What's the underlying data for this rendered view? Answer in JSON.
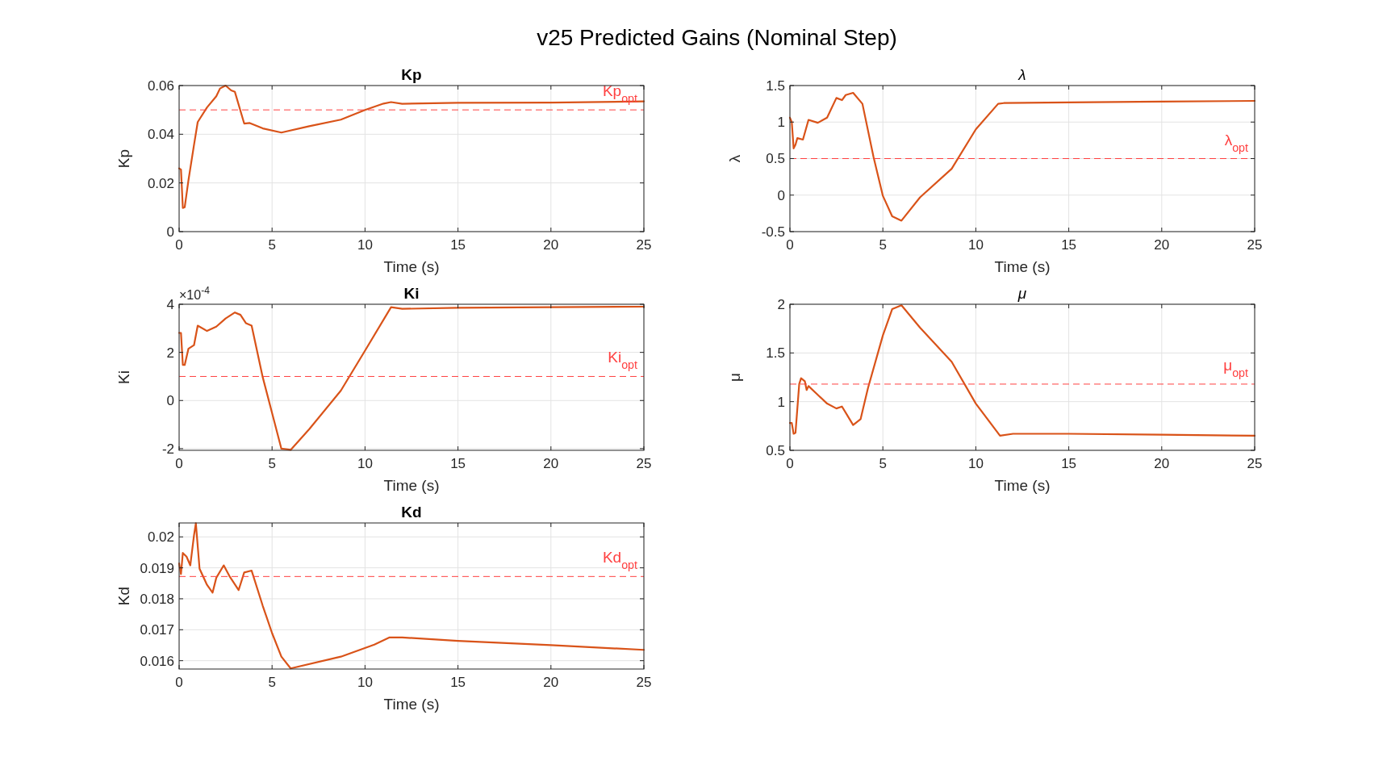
{
  "chart_data": [
    {
      "type": "line",
      "title": "Kp",
      "xlabel": "Time (s)",
      "ylabel": "Kp",
      "annotations": [
        "v25 Predicted Gains (Nominal Step)"
      ],
      "xlim": [
        0,
        25
      ],
      "xticks": [
        0,
        5,
        10,
        15,
        20,
        25
      ],
      "ylim": [
        0,
        0.06
      ],
      "yticks": [
        0,
        0.02,
        0.04,
        0.06
      ],
      "grid": true,
      "x": [
        0,
        0.1,
        0.2,
        0.3,
        0.5,
        0.8,
        1,
        1.5,
        2,
        2.2,
        2.5,
        2.8,
        3,
        3.5,
        3.8,
        4.5,
        5.5,
        7,
        8.7,
        10,
        11,
        11.4,
        12,
        15,
        20,
        25
      ],
      "series": [
        {
          "color": "#d95319",
          "values": [
            0.026,
            0.0255,
            0.0097,
            0.01,
            0.021,
            0.0356,
            0.045,
            0.051,
            0.0556,
            0.0588,
            0.06,
            0.058,
            0.0574,
            0.0444,
            0.0446,
            0.0424,
            0.0407,
            0.0433,
            0.046,
            0.05,
            0.0526,
            0.0532,
            0.0525,
            0.0529,
            0.053,
            0.0535
          ]
        }
      ],
      "ref_lines": [
        {
          "axis": "y",
          "value": 0.05,
          "label": "Kp$_{opt}$",
          "color": "#ff4040",
          "line_style": "dashed"
        }
      ]
    },
    {
      "type": "line",
      "title": "λ",
      "xlabel": "Time (s)",
      "ylabel": "λ",
      "xlim": [
        0,
        25
      ],
      "xticks": [
        0,
        5,
        10,
        15,
        20,
        25
      ],
      "ylim": [
        -0.5,
        1.5
      ],
      "yticks": [
        -0.5,
        0,
        0.5,
        1,
        1.5
      ],
      "grid": true,
      "x": [
        0,
        0.1,
        0.2,
        0.3,
        0.4,
        0.7,
        1,
        1.5,
        2,
        2.5,
        2.8,
        3,
        3.4,
        3.9,
        4.5,
        5,
        5.5,
        6,
        7,
        8.7,
        10,
        11.2,
        11.5,
        15,
        20,
        25
      ],
      "series": [
        {
          "color": "#d95319",
          "values": [
            1.06,
            1.0,
            0.64,
            0.69,
            0.78,
            0.76,
            1.03,
            0.99,
            1.06,
            1.33,
            1.3,
            1.37,
            1.4,
            1.25,
            0.52,
            -0.01,
            -0.29,
            -0.35,
            -0.03,
            0.36,
            0.9,
            1.25,
            1.26,
            1.27,
            1.28,
            1.29
          ]
        }
      ],
      "ref_lines": [
        {
          "axis": "y",
          "value": 0.5,
          "label": "λ$_{opt}$",
          "color": "#ff4040",
          "line_style": "dashed"
        }
      ]
    },
    {
      "type": "line",
      "title": "Ki",
      "xlabel": "Time (s)",
      "ylabel": "Ki",
      "annotations": [
        "×10$^{-4}$"
      ],
      "xlim": [
        0,
        25
      ],
      "xticks": [
        0,
        5,
        10,
        15,
        20,
        25
      ],
      "ylim": [
        -2.07,
        4
      ],
      "yticks": [
        -2,
        0,
        2,
        4
      ],
      "grid": true,
      "x": [
        0,
        0.1,
        0.2,
        0.3,
        0.5,
        0.8,
        1,
        1.5,
        2,
        2.5,
        3,
        3.3,
        3.6,
        3.9,
        4.5,
        5,
        5.5,
        6,
        7,
        8.7,
        10,
        11.4,
        12,
        15,
        20,
        25
      ],
      "series": [
        {
          "color": "#d95319",
          "values": [
            2.81,
            2.81,
            1.48,
            1.48,
            2.15,
            2.3,
            3.11,
            2.89,
            3.07,
            3.41,
            3.66,
            3.56,
            3.21,
            3.11,
            0.96,
            -0.52,
            -2.0,
            -2.05,
            -1.19,
            0.41,
            2.07,
            3.88,
            3.81,
            3.85,
            3.88,
            3.9
          ]
        }
      ],
      "ref_lines": [
        {
          "axis": "y",
          "value": 1,
          "label": "Ki$_{opt}$",
          "color": "#ff4040",
          "line_style": "dashed"
        }
      ]
    },
    {
      "type": "line",
      "title": "μ",
      "xlabel": "Time (s)",
      "ylabel": "μ",
      "xlim": [
        0,
        25
      ],
      "xticks": [
        0,
        5,
        10,
        15,
        20,
        25
      ],
      "ylim": [
        0.5,
        2
      ],
      "yticks": [
        0.5,
        1,
        1.5,
        2
      ],
      "grid": true,
      "x": [
        0,
        0.1,
        0.2,
        0.3,
        0.5,
        0.6,
        0.8,
        0.9,
        1,
        1.5,
        2,
        2.5,
        2.8,
        3.4,
        3.8,
        4.2,
        5,
        5.5,
        6,
        7,
        8.7,
        10,
        11.3,
        12,
        15,
        20,
        25
      ],
      "series": [
        {
          "color": "#d95319",
          "values": [
            0.78,
            0.78,
            0.67,
            0.68,
            1.18,
            1.24,
            1.21,
            1.12,
            1.16,
            1.07,
            0.98,
            0.93,
            0.95,
            0.76,
            0.82,
            1.14,
            1.68,
            1.95,
            1.99,
            1.76,
            1.41,
            0.98,
            0.65,
            0.67,
            0.67,
            0.66,
            0.65
          ]
        }
      ],
      "ref_lines": [
        {
          "axis": "y",
          "value": 1.18,
          "label": "μ$_{opt}$",
          "color": "#ff4040",
          "line_style": "dashed"
        }
      ]
    },
    {
      "type": "line",
      "title": "Kd",
      "xlabel": "Time (s)",
      "ylabel": "Kd",
      "xlim": [
        0,
        25
      ],
      "xticks": [
        0,
        5,
        10,
        15,
        20,
        25
      ],
      "ylim": [
        0.01573,
        0.02045
      ],
      "yticks": [
        0.016,
        0.017,
        0.018,
        0.019,
        0.02
      ],
      "grid": true,
      "x": [
        0,
        0.1,
        0.2,
        0.4,
        0.6,
        0.8,
        0.9,
        1.1,
        1.5,
        1.8,
        2,
        2.4,
        2.7,
        3.2,
        3.5,
        3.9,
        4.5,
        5,
        5.5,
        6,
        8.7,
        10.5,
        11.3,
        12,
        15,
        20,
        25
      ],
      "series": [
        {
          "color": "#d95319",
          "values": [
            0.01914,
            0.0188,
            0.01948,
            0.01936,
            0.01908,
            0.02005,
            0.02044,
            0.01897,
            0.01845,
            0.0182,
            0.01868,
            0.01908,
            0.01874,
            0.01828,
            0.01885,
            0.01891,
            0.01777,
            0.01689,
            0.01613,
            0.01575,
            0.01613,
            0.01652,
            0.01675,
            0.01675,
            0.01664,
            0.0165,
            0.01635
          ]
        }
      ],
      "ref_lines": [
        {
          "axis": "y",
          "value": 0.01872,
          "label": "Kd$_{opt}$",
          "color": "#ff4040",
          "line_style": "dashed"
        }
      ]
    }
  ]
}
